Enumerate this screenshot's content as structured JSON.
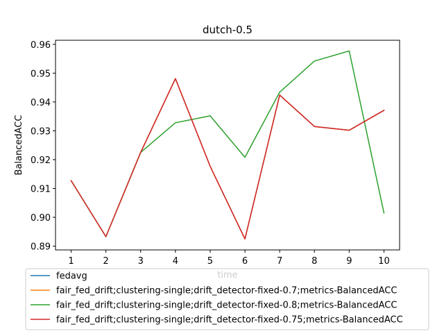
{
  "chart_data": {
    "type": "line",
    "title": "dutch-0.5",
    "xlabel": "time",
    "ylabel": "BalancedACC",
    "x": [
      1,
      2,
      3,
      4,
      5,
      6,
      7,
      8,
      9,
      10
    ],
    "xlim": [
      0.55,
      10.45
    ],
    "ylim": [
      0.8887,
      0.9614
    ],
    "x_ticks": [
      1,
      2,
      3,
      4,
      5,
      6,
      7,
      8,
      9,
      10
    ],
    "y_ticks": [
      0.89,
      0.9,
      0.91,
      0.92,
      0.93,
      0.94,
      0.95,
      0.96
    ],
    "y_tick_labels": [
      "0.89",
      "0.90",
      "0.91",
      "0.92",
      "0.93",
      "0.94",
      "0.95",
      "0.96"
    ],
    "grid": false,
    "legend_position": "bottom",
    "series": [
      {
        "name": "fedavg",
        "color": "#1f77b4",
        "values": [
          0.9127,
          0.8933,
          0.9225,
          0.9481,
          0.9177,
          0.8925,
          0.9424,
          0.9315,
          0.9302,
          0.9371
        ]
      },
      {
        "name": "fair_fed_drift;clustering-single;drift_detector-fixed-0.7;metrics-BalancedACC",
        "color": "#ff7f0e",
        "values": [
          0.9127,
          0.8933,
          0.9225,
          0.9481,
          0.9177,
          0.8925,
          0.9424,
          0.9315,
          0.9302,
          0.9371
        ]
      },
      {
        "name": "fair_fed_drift;clustering-single;drift_detector-fixed-0.8;metrics-BalancedACC",
        "color": "#2ca02c",
        "values": [
          0.9127,
          0.8933,
          0.9225,
          0.9328,
          0.9352,
          0.9208,
          0.9434,
          0.9542,
          0.9577,
          0.9015
        ]
      },
      {
        "name": "fair_fed_drift;clustering-single;drift_detector-fixed-0.75;metrics-BalancedACC",
        "color": "#d62728",
        "values": [
          0.9127,
          0.8933,
          0.9225,
          0.9481,
          0.9177,
          0.8925,
          0.9424,
          0.9315,
          0.9302,
          0.9371
        ]
      }
    ]
  }
}
